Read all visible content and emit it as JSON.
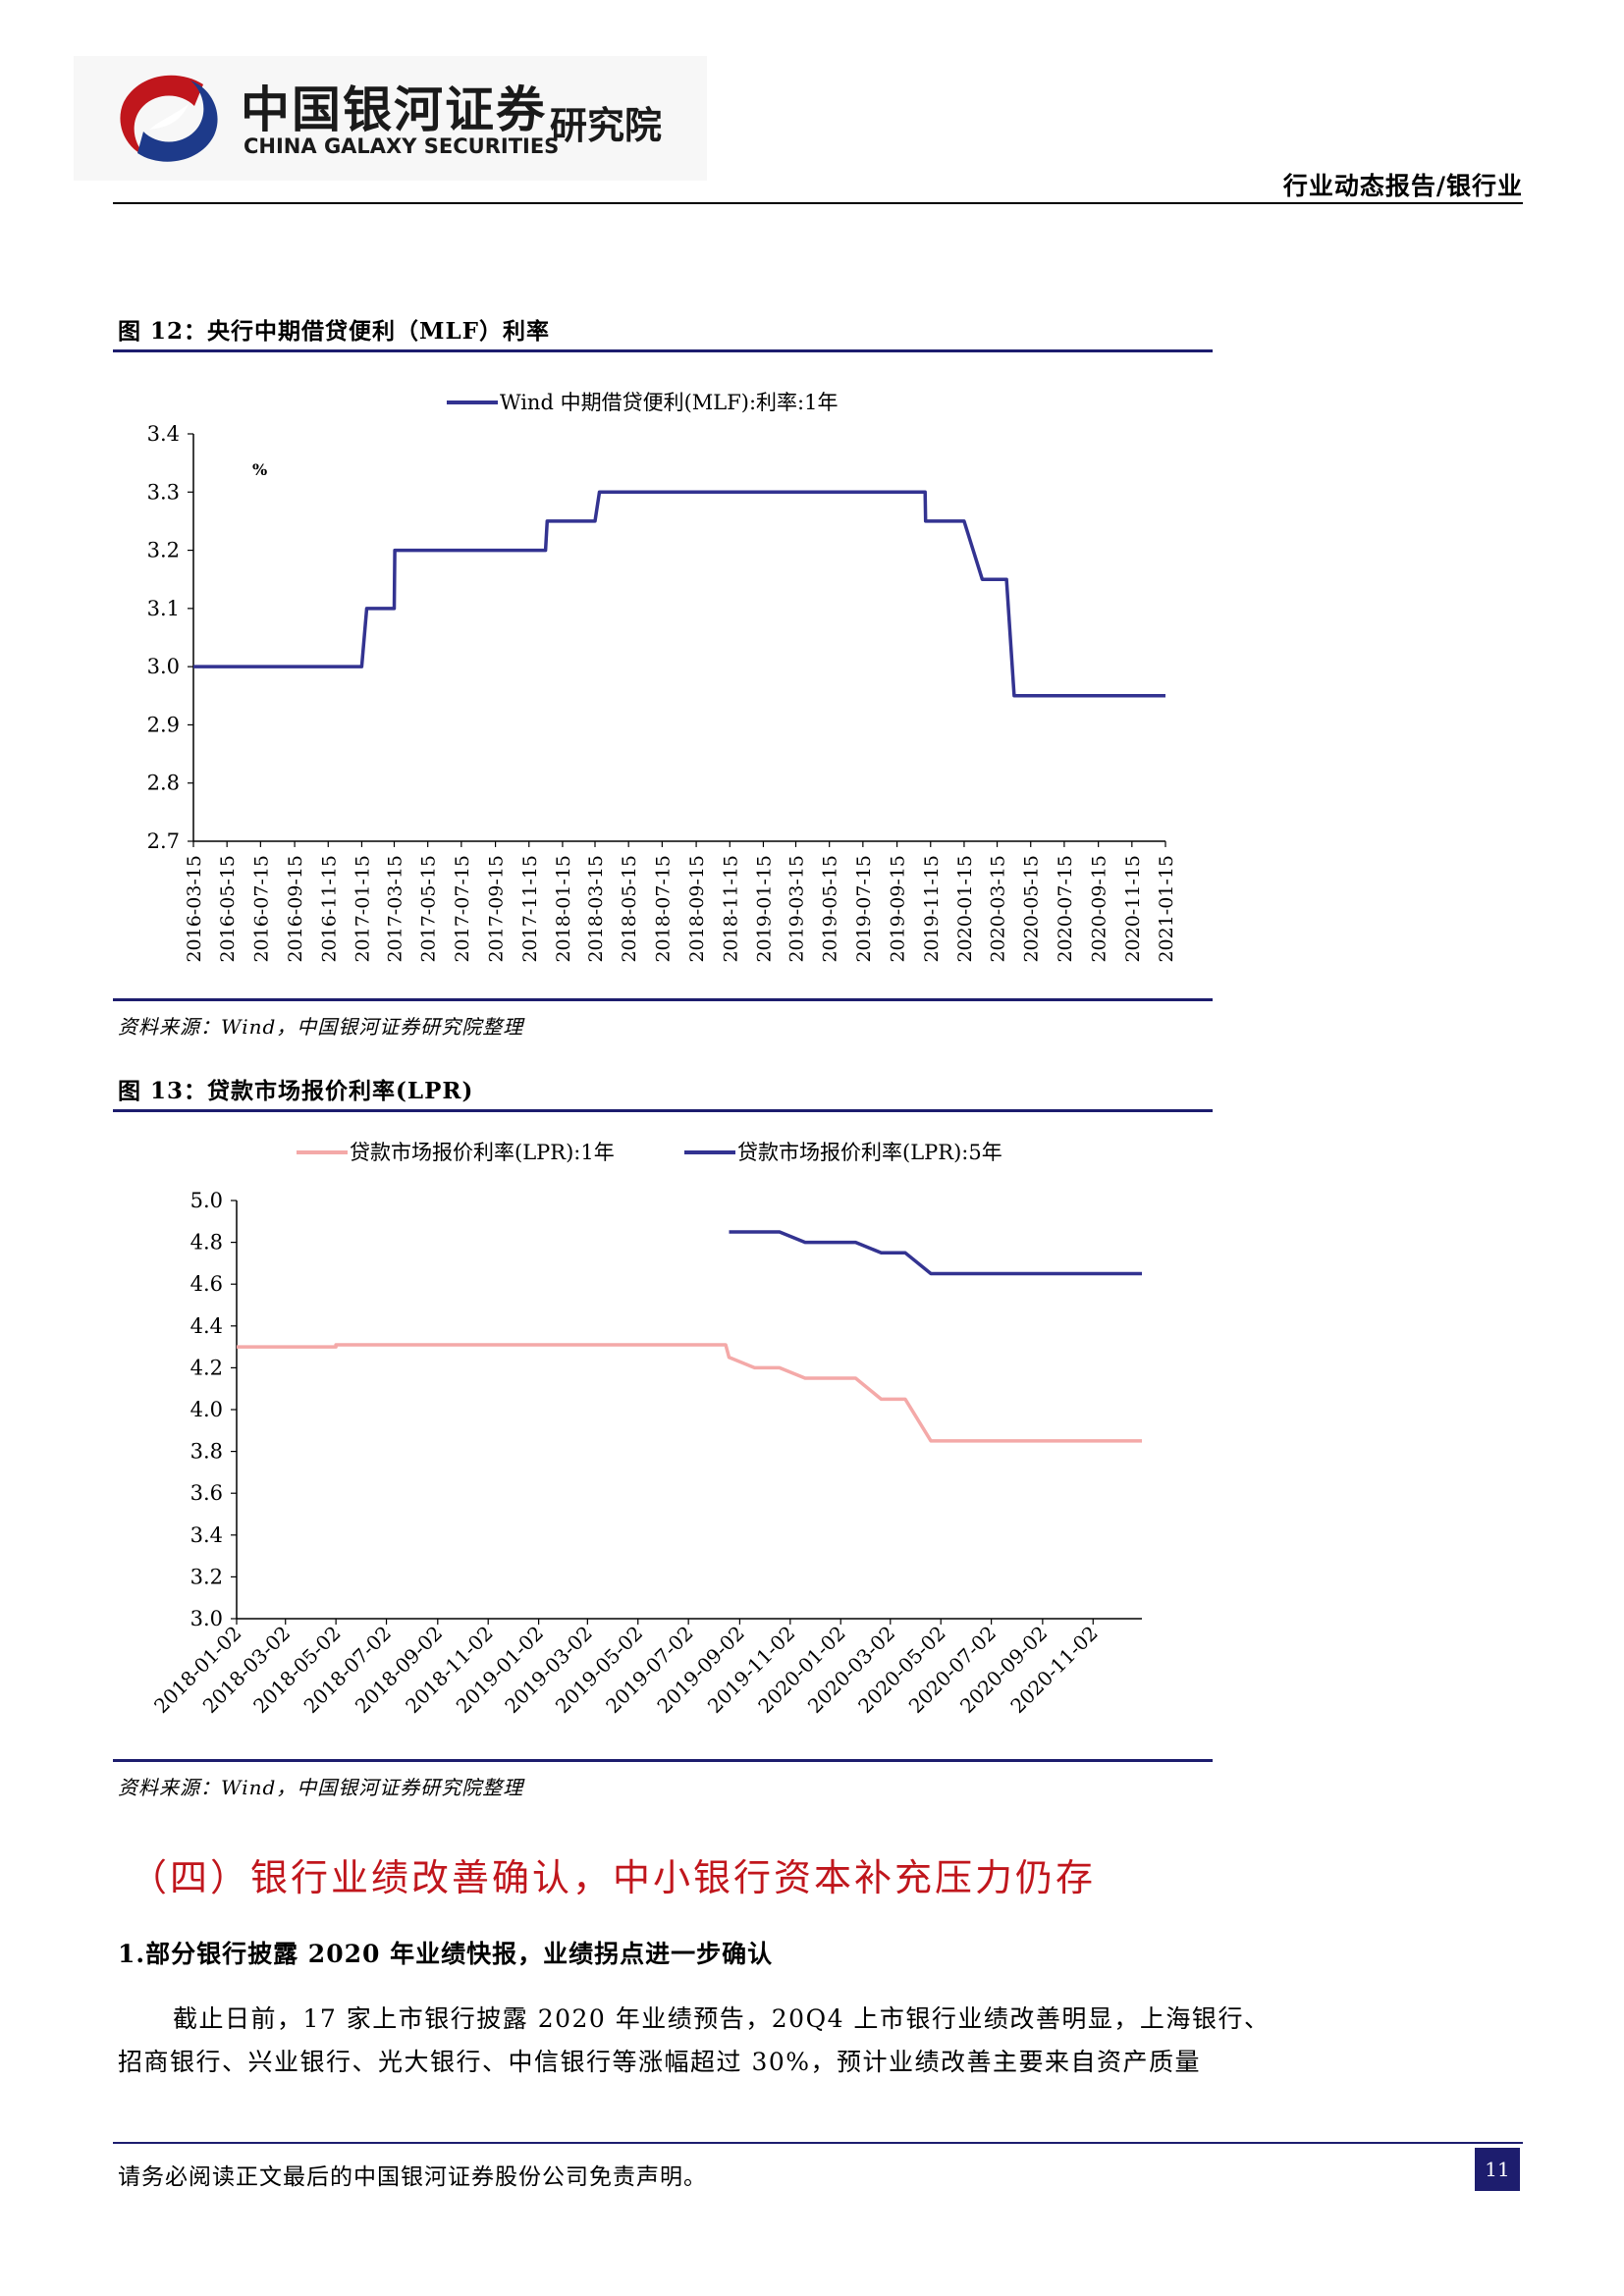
{
  "header": {
    "brand_cn": "中国银河证券",
    "brand_en": "CHINA GALAXY SECURITIES",
    "brand_institute": "研究院",
    "report_type": "行业动态报告/银行业"
  },
  "figure12": {
    "title": "图 12：央行中期借贷便利（MLF）利率",
    "source": "资料来源：Wind，中国银河证券研究院整理"
  },
  "figure13": {
    "title": "图 13：贷款市场报价利率(LPR)",
    "source": "资料来源：Wind，中国银河证券研究院整理"
  },
  "chart_data": [
    {
      "type": "line",
      "unit_label": "%",
      "ylim": [
        2.7,
        3.4
      ],
      "yticks": [
        "3.4",
        "3.3",
        "3.2",
        "3.1",
        "3.0",
        "2.9",
        "2.8",
        "2.7"
      ],
      "xticks": [
        "2016-03-15",
        "2016-05-15",
        "2016-07-15",
        "2016-09-15",
        "2016-11-15",
        "2017-01-15",
        "2017-03-15",
        "2017-05-15",
        "2017-07-15",
        "2017-09-15",
        "2017-11-15",
        "2018-01-15",
        "2018-03-15",
        "2018-05-15",
        "2018-07-15",
        "2018-09-15",
        "2018-11-15",
        "2019-01-15",
        "2019-03-15",
        "2019-05-15",
        "2019-07-15",
        "2019-09-15",
        "2019-11-15",
        "2020-01-15",
        "2020-03-15",
        "2020-05-15",
        "2020-07-15",
        "2020-09-15",
        "2020-11-15",
        "2021-01-15"
      ],
      "legend_position": "top",
      "series": [
        {
          "name": "Wind 中期借贷便利(MLF):利率:1年",
          "color": "#333391",
          "x": [
            "2016-03-15",
            "2017-01-15",
            "2017-01-24",
            "2017-03-15",
            "2017-03-16",
            "2017-12-15",
            "2017-12-18",
            "2018-03-15",
            "2018-03-23",
            "2019-11-05",
            "2019-11-06",
            "2020-01-15",
            "2020-02-17",
            "2020-04-01",
            "2020-04-15",
            "2021-01-15"
          ],
          "y": [
            3.0,
            3.0,
            3.1,
            3.1,
            3.2,
            3.2,
            3.25,
            3.25,
            3.3,
            3.3,
            3.25,
            3.25,
            3.15,
            3.15,
            2.95,
            2.95
          ]
        }
      ]
    },
    {
      "type": "line",
      "ylim": [
        3.0,
        5.0
      ],
      "yticks": [
        "5.0",
        "4.8",
        "4.6",
        "4.4",
        "4.2",
        "4.0",
        "3.8",
        "3.6",
        "3.4",
        "3.2",
        "3.0"
      ],
      "xticks": [
        "2018-01-02",
        "2018-03-02",
        "2018-05-02",
        "2018-07-02",
        "2018-09-02",
        "2018-11-02",
        "2019-01-02",
        "2019-03-02",
        "2019-05-02",
        "2019-07-02",
        "2019-09-02",
        "2019-11-02",
        "2020-01-02",
        "2020-03-02",
        "2020-05-02",
        "2020-07-02",
        "2020-09-02",
        "2020-11-02"
      ],
      "legend_position": "top",
      "series": [
        {
          "name": "贷款市场报价利率(LPR):1年",
          "color": "#f4a9a8",
          "x": [
            "2018-01-02",
            "2018-05-02",
            "2018-05-02",
            "2018-11-02",
            "2018-11-02",
            "2019-08-16",
            "2019-08-20",
            "2019-09-20",
            "2019-10-20",
            "2019-11-20",
            "2019-12-20",
            "2020-01-20",
            "2020-02-20",
            "2020-03-20",
            "2020-04-20",
            "2020-12-31"
          ],
          "y": [
            4.3,
            4.3,
            4.31,
            4.31,
            4.31,
            4.31,
            4.25,
            4.2,
            4.2,
            4.15,
            4.15,
            4.15,
            4.05,
            4.05,
            3.85,
            3.85
          ]
        },
        {
          "name": "贷款市场报价利率(LPR):5年",
          "color": "#333391",
          "x": [
            "2019-08-20",
            "2019-10-20",
            "2019-11-20",
            "2020-01-20",
            "2020-02-20",
            "2020-03-20",
            "2020-04-20",
            "2020-12-31"
          ],
          "y": [
            4.85,
            4.85,
            4.8,
            4.8,
            4.75,
            4.75,
            4.65,
            4.65
          ]
        }
      ]
    }
  ],
  "section": {
    "heading": "（四）银行业绩改善确认，中小银行资本补充压力仍存",
    "subheading": "1.部分银行披露 2020 年业绩快报，业绩拐点进一步确认",
    "para_line1": "截止日前，17 家上市银行披露 2020 年业绩预告，20Q4 上市银行业绩改善明显，上海银行、",
    "para_line2": "招商银行、兴业银行、光大银行、中信银行等涨幅超过 30%，预计业绩改善主要来自资产质量"
  },
  "footer": {
    "disclaimer": "请务必阅读正文最后的中国银河证券股份公司免责声明。",
    "page_number": "11"
  }
}
